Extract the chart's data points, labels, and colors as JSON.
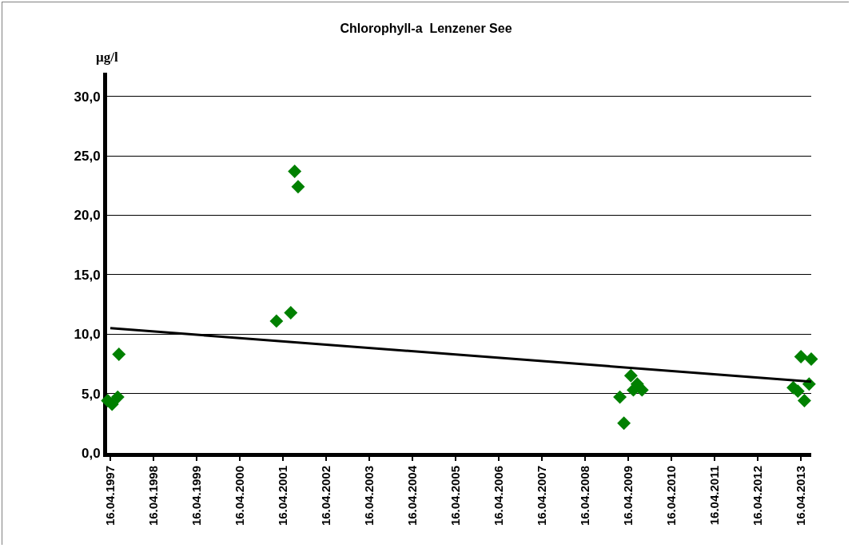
{
  "chart_data": {
    "type": "scatter",
    "title": "Chlorophyll-a  Lenzener See",
    "ylabel": "µg/l",
    "grid": "y",
    "legend": false,
    "xlim": [
      "1997-03-20",
      "2013-07-12"
    ],
    "xticks": [
      {
        "value": "1997-04-16",
        "label": "16.04.1997"
      },
      {
        "value": "1998-04-16",
        "label": "16.04.1998"
      },
      {
        "value": "1999-04-16",
        "label": "16.04.1999"
      },
      {
        "value": "2000-04-16",
        "label": "16.04.2000"
      },
      {
        "value": "2001-04-16",
        "label": "16.04.2001"
      },
      {
        "value": "2002-04-16",
        "label": "16.04.2002"
      },
      {
        "value": "2003-04-16",
        "label": "16.04.2003"
      },
      {
        "value": "2004-04-16",
        "label": "16.04.2004"
      },
      {
        "value": "2005-04-16",
        "label": "16.04.2005"
      },
      {
        "value": "2006-04-16",
        "label": "16.04.2006"
      },
      {
        "value": "2007-04-16",
        "label": "16.04.2007"
      },
      {
        "value": "2008-04-16",
        "label": "16.04.2008"
      },
      {
        "value": "2009-04-16",
        "label": "16.04.2009"
      },
      {
        "value": "2010-04-16",
        "label": "16.04.2010"
      },
      {
        "value": "2011-04-16",
        "label": "16.04.2011"
      },
      {
        "value": "2012-04-16",
        "label": "16.04.2012"
      },
      {
        "value": "2013-04-16",
        "label": "16.04.2013"
      }
    ],
    "ylim": [
      0,
      32
    ],
    "yticks": [
      {
        "value": 0,
        "label": "0,0"
      },
      {
        "value": 5,
        "label": "5,0"
      },
      {
        "value": 10,
        "label": "10,0"
      },
      {
        "value": 15,
        "label": "15,0"
      },
      {
        "value": 20,
        "label": "20,0"
      },
      {
        "value": 25,
        "label": "25,0"
      },
      {
        "value": 30,
        "label": "30,0"
      }
    ],
    "series": [
      {
        "marker": "diamond",
        "color": "#008000",
        "x": [
          "1997-03-25",
          "1997-05-01",
          "1997-06-18",
          "1997-06-28",
          "2001-02-20",
          "2001-06-21",
          "2001-07-24",
          "2001-08-22",
          "2009-02-04",
          "2009-03-10",
          "2009-05-08",
          "2009-05-29",
          "2009-07-01",
          "2009-08-10",
          "2013-02-10",
          "2013-03-21",
          "2013-04-16",
          "2013-05-15",
          "2013-06-24",
          "2013-07-12"
        ],
        "values": [
          4.4,
          4.1,
          4.7,
          8.3,
          11.1,
          11.8,
          23.7,
          22.4,
          4.7,
          2.5,
          6.5,
          5.3,
          5.8,
          5.3,
          5.5,
          5.2,
          8.1,
          4.4,
          5.8,
          7.9
        ]
      },
      {
        "type": "line",
        "color": "#000000",
        "x": [
          "1997-04-16",
          "2013-07-12"
        ],
        "values": [
          10.5,
          6.0
        ]
      }
    ]
  }
}
